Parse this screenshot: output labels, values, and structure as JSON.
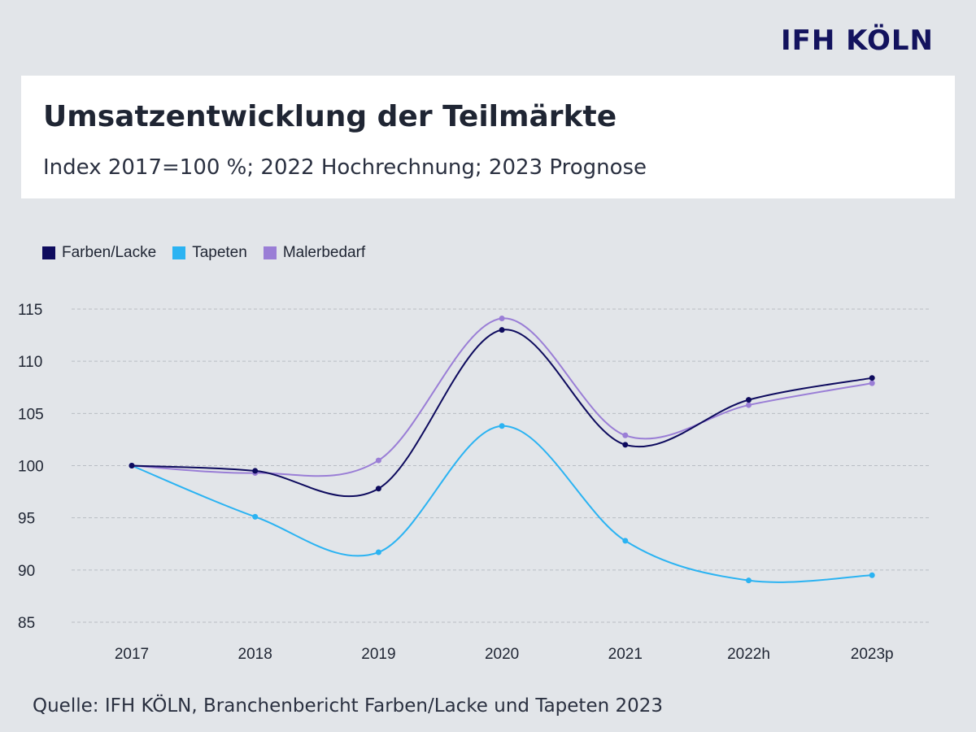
{
  "logo": "IFH KÖLN",
  "title": "Umsatzentwicklung der Teilmärkte",
  "subtitle": "Index 2017=100 %; 2022 Hochrechnung; 2023 Prognose",
  "source": "Quelle: IFH KÖLN, Branchenbericht Farben/Lacke und Tapeten 2023",
  "chart_data": {
    "type": "line",
    "title": "Umsatzentwicklung der Teilmärkte",
    "xlabel": "",
    "ylabel": "",
    "categories": [
      "2017",
      "2018",
      "2019",
      "2020",
      "2021",
      "2022h",
      "2023p"
    ],
    "ylim": [
      85,
      115
    ],
    "yticks": [
      85,
      90,
      95,
      100,
      105,
      110,
      115
    ],
    "grid": true,
    "legend_position": "top-left",
    "series": [
      {
        "name": "Farben/Lacke",
        "color": "#0e0b5e",
        "values": [
          100,
          99.5,
          97.8,
          113.0,
          102.0,
          106.3,
          108.4
        ]
      },
      {
        "name": "Tapeten",
        "color": "#2bb3f2",
        "values": [
          100,
          95.1,
          91.7,
          103.8,
          92.8,
          89.0,
          89.5
        ]
      },
      {
        "name": "Malerbedarf",
        "color": "#9a7ed6",
        "values": [
          100,
          99.3,
          100.5,
          114.1,
          102.9,
          105.8,
          107.9
        ]
      }
    ]
  }
}
